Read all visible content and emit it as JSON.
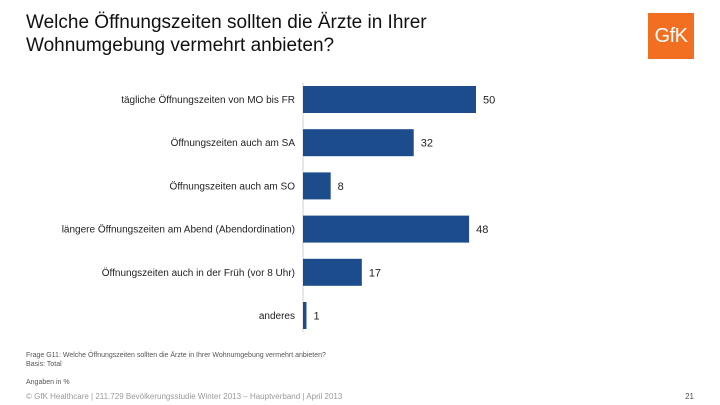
{
  "header": {
    "title_line1": "Welche Öffnungszeiten sollten die Ärzte in Ihrer",
    "title_line2": "Wohnumgebung vermehrt anbieten?",
    "logo_text": "GfK"
  },
  "colors": {
    "bar": "#1d4c8c",
    "logo": "#f26e21"
  },
  "chart_data": {
    "type": "bar",
    "orientation": "horizontal",
    "title": "Welche Öffnungszeiten sollten die Ärzte in Ihrer Wohnumgebung vermehrt anbieten?",
    "categories": [
      "tägliche Öffnungszeiten von MO bis FR",
      "Öffnungszeiten auch am SA",
      "Öffnungszeiten auch am SO",
      "längere Öffnungszeiten am Abend (Abendordination)",
      "Öffnungszeiten auch in der Früh (vor 8 Uhr)",
      "anderes"
    ],
    "values": [
      50,
      32,
      8,
      48,
      17,
      1
    ],
    "unit": "%",
    "xlim": [
      0,
      50
    ],
    "grid": false
  },
  "footnotes": {
    "question": "Frage G11: Welche Öffnungszeiten sollten die Ärzte in Ihrer Wohnumgebung vermehrt anbieten?",
    "basis": "Basis: Total",
    "unit_note": "Angaben in %"
  },
  "footer": {
    "source": "© GfK Healthcare | 211.729 Bevölkerungsstudie Winter 2013 – Hauptverband | April 2013",
    "page": "21"
  }
}
